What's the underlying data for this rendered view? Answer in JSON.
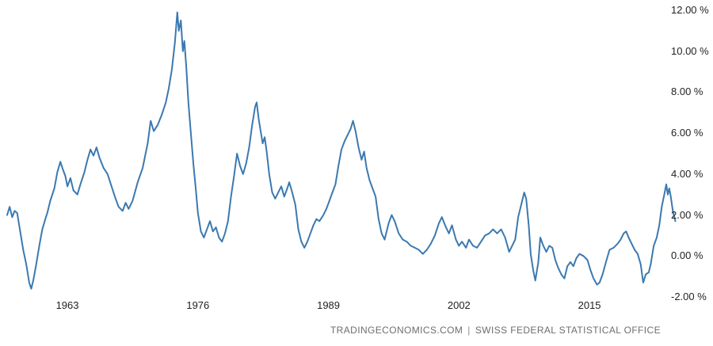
{
  "chart_data": {
    "type": "line",
    "title": "",
    "line_color": "#3b79b0",
    "background_color": "#ffffff",
    "grid": false,
    "legend": "none",
    "x_range": [
      1956.92,
      2023.83
    ],
    "y_range": [
      -2,
      12
    ],
    "x_tick_values": [
      1963,
      1976,
      1989,
      2002,
      2015
    ],
    "x_tick_labels": [
      "1963",
      "1976",
      "1989",
      "2002",
      "2015"
    ],
    "y_tick_values": [
      12,
      10,
      8,
      6,
      4,
      2,
      0,
      -2
    ],
    "y_tick_labels": [
      "12.00 %",
      "10.00 %",
      "8.00 %",
      "6.00 %",
      "4.00 %",
      "2.00 %",
      "0.00 %",
      "-2.00 %"
    ],
    "points": [
      [
        1957.0,
        2.0
      ],
      [
        1957.25,
        2.4
      ],
      [
        1957.5,
        1.9
      ],
      [
        1957.75,
        2.2
      ],
      [
        1958.0,
        2.1
      ],
      [
        1958.3,
        1.2
      ],
      [
        1958.6,
        0.3
      ],
      [
        1958.9,
        -0.4
      ],
      [
        1959.2,
        -1.3
      ],
      [
        1959.4,
        -1.6
      ],
      [
        1959.6,
        -1.2
      ],
      [
        1959.9,
        -0.4
      ],
      [
        1960.2,
        0.5
      ],
      [
        1960.5,
        1.3
      ],
      [
        1960.8,
        1.8
      ],
      [
        1961.0,
        2.1
      ],
      [
        1961.3,
        2.7
      ],
      [
        1961.7,
        3.3
      ],
      [
        1962.0,
        4.1
      ],
      [
        1962.3,
        4.6
      ],
      [
        1962.5,
        4.3
      ],
      [
        1962.8,
        3.9
      ],
      [
        1963.0,
        3.4
      ],
      [
        1963.3,
        3.8
      ],
      [
        1963.6,
        3.2
      ],
      [
        1964.0,
        3.0
      ],
      [
        1964.3,
        3.5
      ],
      [
        1964.7,
        4.1
      ],
      [
        1965.0,
        4.7
      ],
      [
        1965.3,
        5.2
      ],
      [
        1965.6,
        4.9
      ],
      [
        1965.9,
        5.3
      ],
      [
        1966.2,
        4.8
      ],
      [
        1966.6,
        4.3
      ],
      [
        1967.0,
        4.0
      ],
      [
        1967.4,
        3.4
      ],
      [
        1967.8,
        2.8
      ],
      [
        1968.1,
        2.4
      ],
      [
        1968.5,
        2.2
      ],
      [
        1968.8,
        2.6
      ],
      [
        1969.1,
        2.3
      ],
      [
        1969.5,
        2.7
      ],
      [
        1970.0,
        3.6
      ],
      [
        1970.5,
        4.3
      ],
      [
        1971.0,
        5.5
      ],
      [
        1971.3,
        6.6
      ],
      [
        1971.6,
        6.1
      ],
      [
        1972.0,
        6.4
      ],
      [
        1972.4,
        6.9
      ],
      [
        1972.8,
        7.5
      ],
      [
        1973.1,
        8.2
      ],
      [
        1973.4,
        9.1
      ],
      [
        1973.7,
        10.4
      ],
      [
        1973.95,
        11.9
      ],
      [
        1974.1,
        11.0
      ],
      [
        1974.3,
        11.5
      ],
      [
        1974.5,
        10.0
      ],
      [
        1974.65,
        10.5
      ],
      [
        1974.85,
        9.2
      ],
      [
        1975.05,
        7.5
      ],
      [
        1975.3,
        6.0
      ],
      [
        1975.55,
        4.5
      ],
      [
        1975.8,
        3.2
      ],
      [
        1976.0,
        2.1
      ],
      [
        1976.3,
        1.2
      ],
      [
        1976.6,
        0.9
      ],
      [
        1976.9,
        1.3
      ],
      [
        1977.2,
        1.7
      ],
      [
        1977.5,
        1.2
      ],
      [
        1977.8,
        1.4
      ],
      [
        1978.1,
        0.9
      ],
      [
        1978.4,
        0.7
      ],
      [
        1978.7,
        1.1
      ],
      [
        1979.0,
        1.7
      ],
      [
        1979.3,
        2.9
      ],
      [
        1979.6,
        3.9
      ],
      [
        1979.9,
        5.0
      ],
      [
        1980.2,
        4.4
      ],
      [
        1980.5,
        4.0
      ],
      [
        1980.8,
        4.5
      ],
      [
        1981.1,
        5.3
      ],
      [
        1981.4,
        6.4
      ],
      [
        1981.7,
        7.3
      ],
      [
        1981.85,
        7.5
      ],
      [
        1982.05,
        6.7
      ],
      [
        1982.25,
        6.1
      ],
      [
        1982.45,
        5.5
      ],
      [
        1982.65,
        5.8
      ],
      [
        1982.85,
        5.1
      ],
      [
        1983.1,
        4.0
      ],
      [
        1983.4,
        3.1
      ],
      [
        1983.7,
        2.8
      ],
      [
        1984.0,
        3.1
      ],
      [
        1984.3,
        3.4
      ],
      [
        1984.6,
        2.9
      ],
      [
        1984.9,
        3.3
      ],
      [
        1985.1,
        3.6
      ],
      [
        1985.4,
        3.1
      ],
      [
        1985.7,
        2.5
      ],
      [
        1986.0,
        1.3
      ],
      [
        1986.3,
        0.7
      ],
      [
        1986.6,
        0.4
      ],
      [
        1986.9,
        0.7
      ],
      [
        1987.2,
        1.1
      ],
      [
        1987.5,
        1.5
      ],
      [
        1987.8,
        1.8
      ],
      [
        1988.1,
        1.7
      ],
      [
        1988.5,
        2.0
      ],
      [
        1988.8,
        2.3
      ],
      [
        1989.1,
        2.7
      ],
      [
        1989.4,
        3.1
      ],
      [
        1989.7,
        3.5
      ],
      [
        1990.0,
        4.4
      ],
      [
        1990.3,
        5.2
      ],
      [
        1990.6,
        5.6
      ],
      [
        1990.9,
        5.9
      ],
      [
        1991.2,
        6.2
      ],
      [
        1991.45,
        6.6
      ],
      [
        1991.7,
        6.1
      ],
      [
        1992.0,
        5.3
      ],
      [
        1992.3,
        4.7
      ],
      [
        1992.55,
        5.1
      ],
      [
        1992.8,
        4.3
      ],
      [
        1993.1,
        3.7
      ],
      [
        1993.4,
        3.3
      ],
      [
        1993.7,
        2.9
      ],
      [
        1994.0,
        1.8
      ],
      [
        1994.3,
        1.1
      ],
      [
        1994.6,
        0.8
      ],
      [
        1995.0,
        1.6
      ],
      [
        1995.3,
        2.0
      ],
      [
        1995.6,
        1.7
      ],
      [
        1996.0,
        1.1
      ],
      [
        1996.4,
        0.8
      ],
      [
        1996.8,
        0.7
      ],
      [
        1997.2,
        0.5
      ],
      [
        1997.6,
        0.4
      ],
      [
        1998.0,
        0.3
      ],
      [
        1998.4,
        0.1
      ],
      [
        1998.8,
        0.3
      ],
      [
        1999.2,
        0.6
      ],
      [
        1999.6,
        1.0
      ],
      [
        2000.0,
        1.6
      ],
      [
        2000.3,
        1.9
      ],
      [
        2000.7,
        1.4
      ],
      [
        2001.0,
        1.1
      ],
      [
        2001.3,
        1.5
      ],
      [
        2001.7,
        0.8
      ],
      [
        2002.0,
        0.5
      ],
      [
        2002.3,
        0.7
      ],
      [
        2002.7,
        0.4
      ],
      [
        2003.0,
        0.8
      ],
      [
        2003.4,
        0.5
      ],
      [
        2003.8,
        0.4
      ],
      [
        2004.2,
        0.7
      ],
      [
        2004.6,
        1.0
      ],
      [
        2005.0,
        1.1
      ],
      [
        2005.4,
        1.3
      ],
      [
        2005.8,
        1.1
      ],
      [
        2006.2,
        1.3
      ],
      [
        2006.6,
        0.9
      ],
      [
        2007.0,
        0.2
      ],
      [
        2007.3,
        0.5
      ],
      [
        2007.6,
        0.8
      ],
      [
        2007.9,
        1.9
      ],
      [
        2008.2,
        2.5
      ],
      [
        2008.5,
        3.1
      ],
      [
        2008.7,
        2.8
      ],
      [
        2008.95,
        1.5
      ],
      [
        2009.15,
        0.1
      ],
      [
        2009.4,
        -0.7
      ],
      [
        2009.6,
        -1.2
      ],
      [
        2009.9,
        -0.3
      ],
      [
        2010.1,
        0.9
      ],
      [
        2010.4,
        0.5
      ],
      [
        2010.7,
        0.2
      ],
      [
        2011.0,
        0.5
      ],
      [
        2011.3,
        0.4
      ],
      [
        2011.6,
        -0.2
      ],
      [
        2011.9,
        -0.6
      ],
      [
        2012.2,
        -0.9
      ],
      [
        2012.5,
        -1.1
      ],
      [
        2012.8,
        -0.5
      ],
      [
        2013.1,
        -0.3
      ],
      [
        2013.4,
        -0.5
      ],
      [
        2013.7,
        -0.1
      ],
      [
        2014.0,
        0.1
      ],
      [
        2014.4,
        0.0
      ],
      [
        2014.8,
        -0.2
      ],
      [
        2015.1,
        -0.7
      ],
      [
        2015.4,
        -1.1
      ],
      [
        2015.75,
        -1.4
      ],
      [
        2016.0,
        -1.3
      ],
      [
        2016.3,
        -0.9
      ],
      [
        2016.7,
        -0.2
      ],
      [
        2017.0,
        0.3
      ],
      [
        2017.4,
        0.4
      ],
      [
        2017.8,
        0.6
      ],
      [
        2018.1,
        0.8
      ],
      [
        2018.4,
        1.1
      ],
      [
        2018.65,
        1.2
      ],
      [
        2018.9,
        0.9
      ],
      [
        2019.2,
        0.6
      ],
      [
        2019.5,
        0.3
      ],
      [
        2019.8,
        0.1
      ],
      [
        2020.1,
        -0.4
      ],
      [
        2020.35,
        -1.3
      ],
      [
        2020.6,
        -0.9
      ],
      [
        2020.9,
        -0.8
      ],
      [
        2021.1,
        -0.4
      ],
      [
        2021.4,
        0.5
      ],
      [
        2021.7,
        0.9
      ],
      [
        2021.95,
        1.5
      ],
      [
        2022.2,
        2.4
      ],
      [
        2022.45,
        3.0
      ],
      [
        2022.65,
        3.5
      ],
      [
        2022.8,
        3.0
      ],
      [
        2022.95,
        3.3
      ],
      [
        2023.1,
        2.9
      ],
      [
        2023.3,
        2.2
      ],
      [
        2023.55,
        1.7
      ]
    ]
  },
  "footer": {
    "brand": "TRADINGECONOMICS.COM",
    "separator": "|",
    "source": "SWISS FEDERAL STATISTICAL OFFICE"
  }
}
